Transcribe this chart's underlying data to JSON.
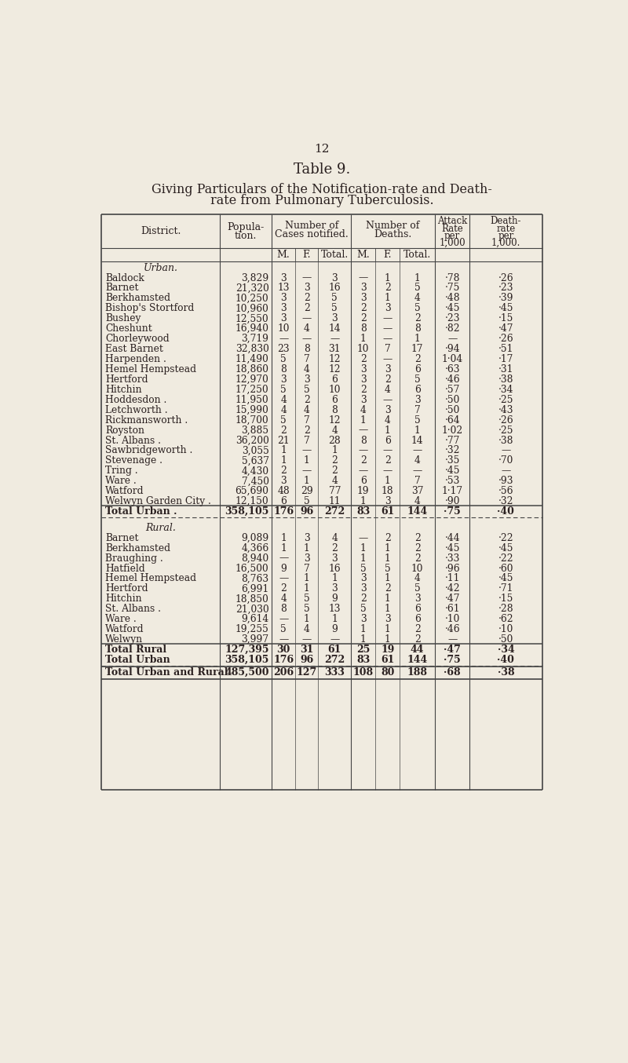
{
  "page_number": "12",
  "table_title": "Table 9.",
  "subtitle_line1": "Giving Particulars of the Notification-rate and Death-",
  "subtitle_line2": "rate from Pulmonary Tuberculosis.",
  "bg_color": "#f0ebe0",
  "text_color": "#2a2020",
  "urban_section_label": "Urban.",
  "urban_rows": [
    [
      "Baldock",
      "3,829",
      "3",
      "—",
      "3",
      "—",
      "1",
      "1",
      "·78",
      "·26"
    ],
    [
      "Barnet",
      "21,320",
      "13",
      "3",
      "16",
      "3",
      "2",
      "5",
      "·75",
      "·23"
    ],
    [
      "Berkhamsted",
      "10,250",
      "3",
      "2",
      "5",
      "3",
      "1",
      "4",
      "·48",
      "·39"
    ],
    [
      "Bishop's Stortford",
      "10,960",
      "3",
      "2",
      "5",
      "2",
      "3",
      "5",
      "·45",
      "·45"
    ],
    [
      "Bushey",
      "12,550",
      "3",
      "—",
      "3",
      "2",
      "—",
      "2",
      "·23",
      "·15"
    ],
    [
      "Cheshunt",
      "16,940",
      "10",
      "4",
      "14",
      "8",
      "—",
      "8",
      "·82",
      "·47"
    ],
    [
      "Chorleywood",
      "3,719",
      "—",
      "—",
      "—",
      "1",
      "—",
      "1",
      "—",
      "·26"
    ],
    [
      "East Barnet",
      "32,830",
      "23",
      "8",
      "31",
      "10",
      "7",
      "17",
      "·94",
      "·51"
    ],
    [
      "Harpenden .",
      "11,490",
      "5",
      "7",
      "12",
      "2",
      "—",
      "2",
      "1·04",
      "·17"
    ],
    [
      "Hemel Hempstead",
      "18,860",
      "8",
      "4",
      "12",
      "3",
      "3",
      "6",
      "·63",
      "·31"
    ],
    [
      "Hertford",
      "12,970",
      "3",
      "3",
      "6",
      "3",
      "2",
      "5",
      "·46",
      "·38"
    ],
    [
      "Hitchin",
      "17,250",
      "5",
      "5",
      "10",
      "2",
      "4",
      "6",
      "·57",
      "·34"
    ],
    [
      "Hoddesdon .",
      "11,950",
      "4",
      "2",
      "6",
      "3",
      "—",
      "3",
      "·50",
      "·25"
    ],
    [
      "Letchworth .",
      "15,990",
      "4",
      "4",
      "8",
      "4",
      "3",
      "7",
      "·50",
      "·43"
    ],
    [
      "Rickmansworth .",
      "18,700",
      "5",
      "7",
      "12",
      "1",
      "4",
      "5",
      "·64",
      "·26"
    ],
    [
      "Royston",
      "3,885",
      "2",
      "2",
      "4",
      "—",
      "1",
      "1",
      "1·02",
      "·25"
    ],
    [
      "St. Albans .",
      "36,200",
      "21",
      "7",
      "28",
      "8",
      "6",
      "14",
      "·77",
      "·38"
    ],
    [
      "Sawbridgeworth .",
      "3,055",
      "1",
      "—",
      "1",
      "—",
      "—",
      "—",
      "·32",
      "—"
    ],
    [
      "Stevenage .",
      "5,637",
      "1",
      "1",
      "2",
      "2",
      "2",
      "4",
      "·35",
      "·70"
    ],
    [
      "Tring .",
      "4,430",
      "2",
      "—",
      "2",
      "—",
      "—",
      "—",
      "·45",
      "—"
    ],
    [
      "Ware .",
      "7,450",
      "3",
      "1",
      "4",
      "6",
      "1",
      "7",
      "·53",
      "·93"
    ],
    [
      "Watford",
      "65,690",
      "48",
      "29",
      "77",
      "19",
      "18",
      "37",
      "1·17",
      "·56"
    ],
    [
      "Welwyn Garden City .",
      "12,150",
      "6",
      "5",
      "11",
      "1",
      "3",
      "4",
      "·90",
      "·32"
    ]
  ],
  "urban_total_row": [
    "Total Urban .",
    "358,105",
    "176",
    "96",
    "272",
    "83",
    "61",
    "144",
    "·75",
    "·40"
  ],
  "rural_section_label": "Rural.",
  "rural_rows": [
    [
      "Barnet",
      "9,089",
      "1",
      "3",
      "4",
      "—",
      "2",
      "2",
      "·44",
      "·22"
    ],
    [
      "Berkhamsted",
      "4,366",
      "1",
      "1",
      "2",
      "1",
      "1",
      "2",
      "·45",
      "·45"
    ],
    [
      "Braughing .",
      "8,940",
      "—",
      "3",
      "3",
      "1",
      "1",
      "2",
      "·33",
      "·22"
    ],
    [
      "Hatfield",
      "16,500",
      "9",
      "7",
      "16",
      "5",
      "5",
      "10",
      "·96",
      "·60"
    ],
    [
      "Hemel Hempstead",
      "8,763",
      "—",
      "1",
      "1",
      "3",
      "1",
      "4",
      "·11",
      "·45"
    ],
    [
      "Hertford",
      "6,991",
      "2",
      "1",
      "3",
      "3",
      "2",
      "5",
      "·42",
      "·71"
    ],
    [
      "Hitchin",
      "18,850",
      "4",
      "5",
      "9",
      "2",
      "1",
      "3",
      "·47",
      "·15"
    ],
    [
      "St. Albans .",
      "21,030",
      "8",
      "5",
      "13",
      "5",
      "1",
      "6",
      "·61",
      "·28"
    ],
    [
      "Ware .",
      "9,614",
      "—",
      "1",
      "1",
      "3",
      "3",
      "6",
      "·10",
      "·62"
    ],
    [
      "Watford",
      "19,255",
      "5",
      "4",
      "9",
      "1",
      "1",
      "2",
      "·46",
      "·10"
    ],
    [
      "Welwyn",
      "3,997",
      "—",
      "—",
      "—",
      "1",
      "1",
      "2",
      "—",
      "·50"
    ]
  ],
  "summary_rows": [
    [
      "Total Rural",
      "127,395",
      "30",
      "31",
      "61",
      "25",
      "19",
      "44",
      "·47",
      "·34"
    ],
    [
      "Total Urban",
      "358,105",
      "176",
      "96",
      "272",
      "83",
      "61",
      "144",
      "·75",
      "·40"
    ]
  ],
  "grand_total_row": [
    "Total Urban and Rural",
    "485,500",
    "206",
    "127",
    "333",
    "108",
    "80",
    "188",
    "·68",
    "·38"
  ]
}
